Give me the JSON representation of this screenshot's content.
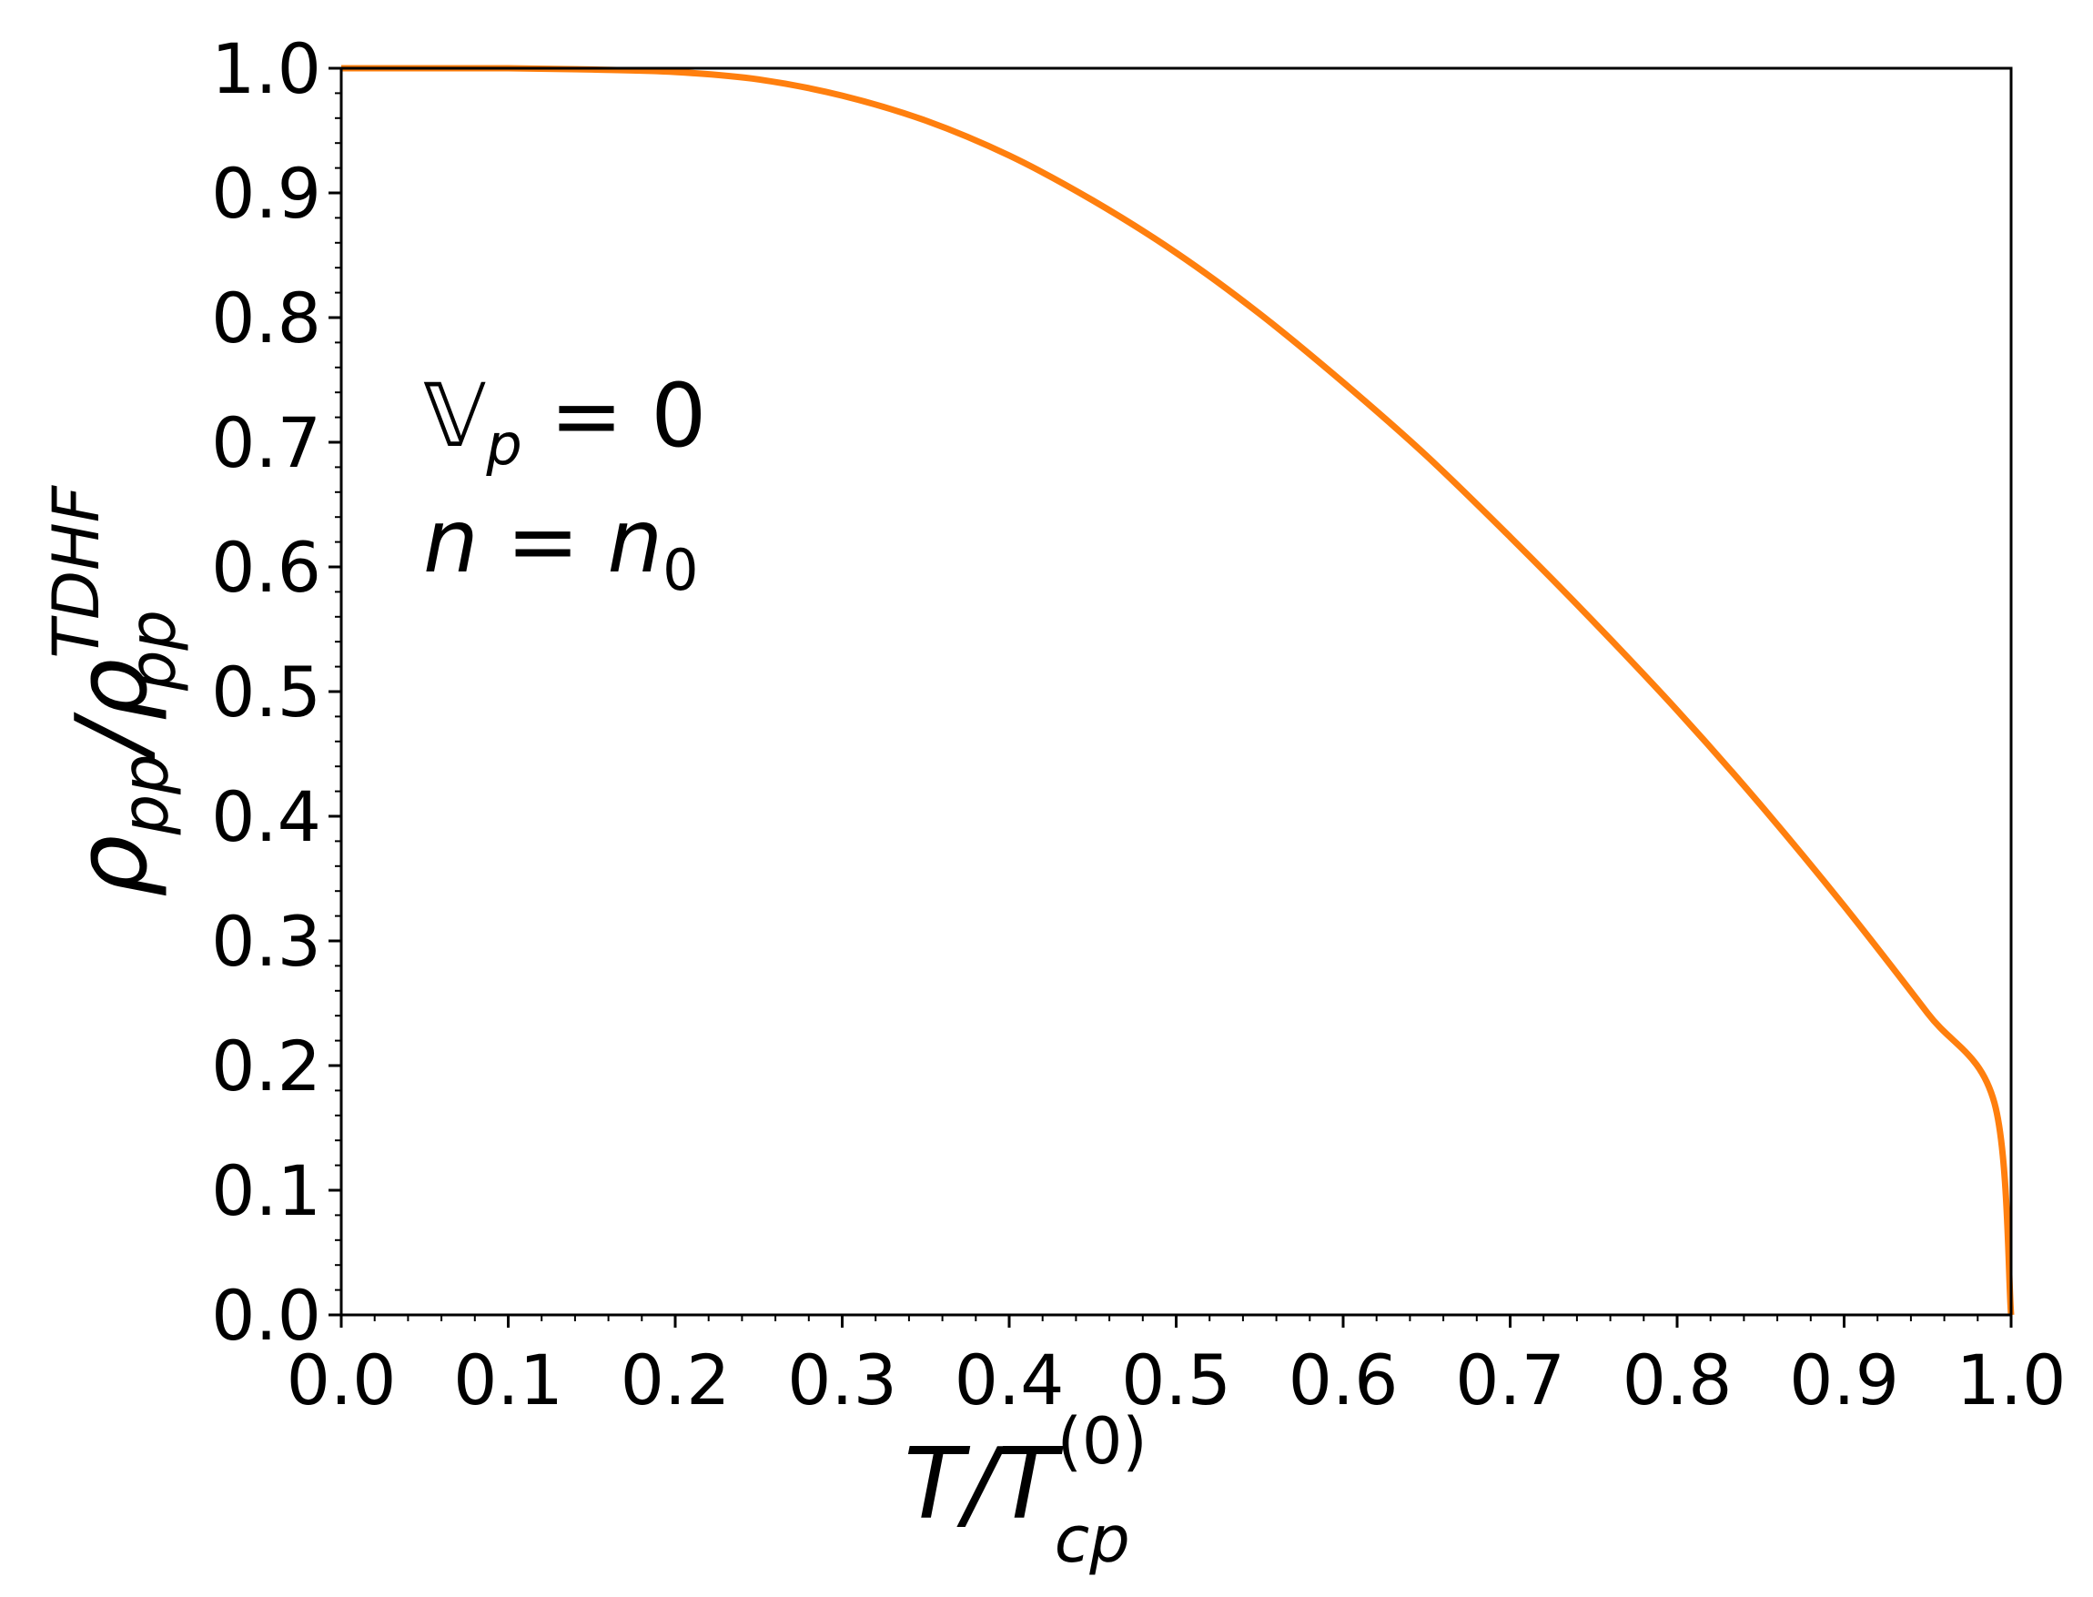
{
  "chart_data": {
    "type": "line",
    "title": "",
    "xlabel": {
      "main": "T/T",
      "sub": "cp",
      "sup": "(0)"
    },
    "ylabel": {
      "main": "ρ",
      "sub": "pp",
      "sep": "/ρ",
      "sub2": "pp",
      "sup2": "TDHF"
    },
    "xlim": [
      0.0,
      1.0
    ],
    "ylim": [
      0.0,
      1.0
    ],
    "xticks": [
      "0.0",
      "0.1",
      "0.2",
      "0.3",
      "0.4",
      "0.5",
      "0.6",
      "0.7",
      "0.8",
      "0.9",
      "1.0"
    ],
    "yticks": [
      "0.0",
      "0.1",
      "0.2",
      "0.3",
      "0.4",
      "0.5",
      "0.6",
      "0.7",
      "0.8",
      "0.9",
      "1.0"
    ],
    "grid": false,
    "annotations": [
      {
        "lines": [
          {
            "symbol": "𝕍",
            "sub": "p",
            "rest": " = 0"
          },
          {
            "symbol": "n",
            "rest": " = n",
            "sub": "0"
          }
        ]
      }
    ],
    "series": [
      {
        "color": "#ff7f0e",
        "x": [
          0.0,
          0.05,
          0.1,
          0.15,
          0.2,
          0.25,
          0.3,
          0.35,
          0.4,
          0.45,
          0.5,
          0.55,
          0.6,
          0.65,
          0.7,
          0.75,
          0.8,
          0.85,
          0.9,
          0.95,
          0.99,
          1.0
        ],
        "y": [
          1.0,
          1.0,
          1.0,
          0.999,
          0.997,
          0.991,
          0.978,
          0.958,
          0.93,
          0.894,
          0.852,
          0.803,
          0.748,
          0.689,
          0.624,
          0.556,
          0.485,
          0.409,
          0.328,
          0.242,
          0.17,
          0.0
        ]
      }
    ]
  }
}
